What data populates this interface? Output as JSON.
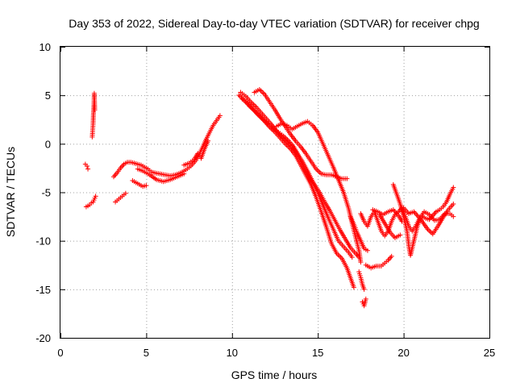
{
  "chart_data": {
    "type": "scatter",
    "title": "Day 353 of 2022, Sidereal Day-to-day VTEC variation (SDTVAR) for receiver chpg",
    "xlabel": "GPS time / hours",
    "ylabel": "SDTVAR / TECUs",
    "xlim": [
      0,
      25
    ],
    "ylim": [
      -20,
      10
    ],
    "xticks": [
      0,
      5,
      10,
      15,
      20,
      25
    ],
    "yticks": [
      -20,
      -15,
      -10,
      -5,
      0,
      5,
      10
    ],
    "xtick_labels": [
      "0",
      "5",
      "10",
      "15",
      "20",
      "25"
    ],
    "ytick_labels": [
      "-20",
      "-15",
      "-10",
      "-5",
      "0",
      "5",
      "10"
    ],
    "grid": true,
    "marker": "plus",
    "color": "#ff0000",
    "series": [
      {
        "name": "s1",
        "points": [
          [
            1.5,
            -6.5
          ],
          [
            1.6,
            -6.4
          ],
          [
            1.7,
            -6.3
          ],
          [
            1.8,
            -6.1
          ],
          [
            1.9,
            -6.0
          ],
          [
            2.0,
            -5.6
          ],
          [
            2.05,
            -5.4
          ]
        ]
      },
      {
        "name": "s2",
        "points": [
          [
            1.45,
            -2.1
          ],
          [
            1.55,
            -2.3
          ],
          [
            1.6,
            -2.6
          ]
        ]
      },
      {
        "name": "s3",
        "points": [
          [
            1.85,
            0.7
          ],
          [
            1.9,
            2.0
          ],
          [
            1.92,
            3.0
          ],
          [
            1.95,
            4.0
          ],
          [
            1.97,
            5.2
          ],
          [
            2.0,
            3.5
          ]
        ]
      },
      {
        "name": "s4",
        "points": [
          [
            3.1,
            -3.4
          ],
          [
            3.3,
            -3.0
          ],
          [
            3.5,
            -2.5
          ],
          [
            3.7,
            -2.1
          ],
          [
            3.9,
            -1.9
          ],
          [
            4.1,
            -1.9
          ],
          [
            4.3,
            -2.0
          ],
          [
            4.5,
            -2.1
          ],
          [
            4.7,
            -2.2
          ],
          [
            4.9,
            -2.4
          ],
          [
            5.1,
            -2.6
          ],
          [
            5.3,
            -2.9
          ],
          [
            5.5,
            -3.0
          ],
          [
            5.8,
            -3.1
          ],
          [
            6.1,
            -3.2
          ],
          [
            6.4,
            -3.3
          ],
          [
            6.7,
            -3.2
          ],
          [
            7.0,
            -3.0
          ],
          [
            7.3,
            -2.7
          ],
          [
            7.6,
            -2.3
          ],
          [
            7.9,
            -1.7
          ],
          [
            8.1,
            -1.0
          ],
          [
            8.3,
            -0.3
          ],
          [
            8.5,
            0.5
          ],
          [
            8.7,
            1.2
          ],
          [
            8.9,
            1.9
          ],
          [
            9.1,
            2.4
          ],
          [
            9.3,
            2.9
          ]
        ]
      },
      {
        "name": "s5",
        "points": [
          [
            3.2,
            -6.0
          ],
          [
            3.4,
            -5.7
          ],
          [
            3.6,
            -5.4
          ],
          [
            3.8,
            -5.1
          ]
        ]
      },
      {
        "name": "s6",
        "points": [
          [
            4.2,
            -3.8
          ],
          [
            4.4,
            -4.0
          ],
          [
            4.6,
            -4.2
          ],
          [
            4.8,
            -4.4
          ],
          [
            5.0,
            -4.3
          ]
        ]
      },
      {
        "name": "s7",
        "points": [
          [
            4.5,
            -2.6
          ],
          [
            4.8,
            -2.8
          ],
          [
            5.2,
            -3.2
          ],
          [
            5.6,
            -3.7
          ],
          [
            6.0,
            -3.9
          ],
          [
            6.4,
            -3.7
          ],
          [
            6.8,
            -3.4
          ],
          [
            7.2,
            -3.1
          ]
        ]
      },
      {
        "name": "s8",
        "points": [
          [
            7.2,
            -2.2
          ],
          [
            7.5,
            -2.0
          ],
          [
            7.8,
            -1.6
          ],
          [
            8.0,
            -1.0
          ],
          [
            8.2,
            -1.5
          ],
          [
            8.4,
            -0.5
          ],
          [
            8.6,
            0.3
          ]
        ]
      },
      {
        "name": "s9",
        "points": [
          [
            10.4,
            5.0
          ],
          [
            10.7,
            4.5
          ],
          [
            11.0,
            3.9
          ],
          [
            11.3,
            3.4
          ],
          [
            11.6,
            2.9
          ],
          [
            11.9,
            2.3
          ],
          [
            12.2,
            1.7
          ],
          [
            12.5,
            1.2
          ],
          [
            12.8,
            0.6
          ],
          [
            13.1,
            0.0
          ],
          [
            13.4,
            -0.5
          ],
          [
            13.7,
            -1.2
          ],
          [
            14.0,
            -2.2
          ],
          [
            14.3,
            -3.2
          ],
          [
            14.6,
            -4.2
          ],
          [
            14.9,
            -5.5
          ],
          [
            15.2,
            -7.0
          ],
          [
            15.5,
            -8.6
          ],
          [
            15.8,
            -10.3
          ],
          [
            16.1,
            -11.3
          ],
          [
            16.4,
            -11.8
          ],
          [
            16.7,
            -12.8
          ],
          [
            16.9,
            -13.8
          ],
          [
            17.1,
            -14.8
          ]
        ]
      },
      {
        "name": "s10",
        "points": [
          [
            10.5,
            5.3
          ],
          [
            10.8,
            4.9
          ],
          [
            11.1,
            4.3
          ],
          [
            11.4,
            3.8
          ],
          [
            11.7,
            3.2
          ],
          [
            12.0,
            2.6
          ],
          [
            12.3,
            2.0
          ],
          [
            12.6,
            1.3
          ],
          [
            12.9,
            0.7
          ],
          [
            13.2,
            0.2
          ],
          [
            13.5,
            -0.3
          ],
          [
            13.8,
            -1.0
          ],
          [
            14.1,
            -1.8
          ],
          [
            14.4,
            -2.8
          ],
          [
            14.7,
            -3.9
          ],
          [
            15.0,
            -5.0
          ],
          [
            15.3,
            -6.3
          ],
          [
            15.6,
            -7.6
          ],
          [
            15.9,
            -8.8
          ],
          [
            16.2,
            -10.0
          ],
          [
            16.5,
            -10.6
          ],
          [
            16.8,
            -11.2
          ],
          [
            17.0,
            -11.7
          ]
        ]
      },
      {
        "name": "s11",
        "points": [
          [
            10.6,
            4.6
          ],
          [
            10.9,
            4.2
          ],
          [
            11.2,
            3.6
          ],
          [
            11.5,
            3.0
          ],
          [
            11.8,
            2.5
          ],
          [
            12.1,
            2.0
          ],
          [
            12.4,
            1.6
          ],
          [
            12.7,
            1.2
          ],
          [
            13.0,
            0.8
          ],
          [
            13.3,
            0.3
          ],
          [
            13.6,
            -0.3
          ],
          [
            13.9,
            -1.3
          ],
          [
            14.2,
            -2.5
          ],
          [
            14.5,
            -3.5
          ],
          [
            14.8,
            -4.2
          ],
          [
            15.1,
            -5.0
          ],
          [
            15.4,
            -6.0
          ],
          [
            15.7,
            -6.9
          ],
          [
            16.0,
            -7.9
          ],
          [
            16.3,
            -8.9
          ],
          [
            16.6,
            -9.8
          ],
          [
            16.9,
            -10.7
          ],
          [
            17.2,
            -11.3
          ],
          [
            17.4,
            -11.7
          ]
        ]
      },
      {
        "name": "s12",
        "points": [
          [
            11.3,
            5.3
          ],
          [
            11.6,
            5.6
          ],
          [
            11.9,
            5.1
          ],
          [
            12.2,
            4.3
          ],
          [
            12.5,
            3.5
          ],
          [
            12.8,
            2.6
          ],
          [
            13.1,
            1.8
          ],
          [
            13.4,
            1.0
          ],
          [
            13.7,
            0.3
          ],
          [
            14.0,
            -0.3
          ],
          [
            14.3,
            -1.0
          ],
          [
            14.6,
            -1.8
          ],
          [
            14.9,
            -2.6
          ],
          [
            15.2,
            -3.1
          ],
          [
            15.5,
            -3.2
          ],
          [
            15.8,
            -3.2
          ],
          [
            16.1,
            -3.4
          ],
          [
            16.4,
            -3.6
          ],
          [
            16.7,
            -3.6
          ]
        ]
      },
      {
        "name": "s13",
        "points": [
          [
            12.6,
            1.8
          ],
          [
            12.9,
            2.1
          ],
          [
            13.2,
            1.9
          ],
          [
            13.5,
            1.5
          ],
          [
            13.8,
            1.8
          ],
          [
            14.1,
            2.1
          ],
          [
            14.4,
            2.3
          ],
          [
            14.7,
            1.9
          ],
          [
            15.0,
            1.2
          ],
          [
            15.3,
            0.0
          ],
          [
            15.6,
            -1.2
          ],
          [
            15.9,
            -2.4
          ],
          [
            16.2,
            -3.7
          ],
          [
            16.5,
            -5.0
          ],
          [
            16.8,
            -6.7
          ],
          [
            17.0,
            -8.2
          ],
          [
            17.2,
            -9.6
          ],
          [
            17.4,
            -11.0
          ],
          [
            17.5,
            -12.2
          ]
        ]
      },
      {
        "name": "s14",
        "points": [
          [
            16.9,
            -7.5
          ],
          [
            17.1,
            -8.3
          ],
          [
            17.3,
            -9.2
          ],
          [
            17.5,
            -10.0
          ],
          [
            17.7,
            -10.8
          ],
          [
            17.9,
            -11.0
          ]
        ]
      },
      {
        "name": "s15",
        "points": [
          [
            17.4,
            -13.2
          ],
          [
            17.5,
            -13.8
          ],
          [
            17.6,
            -14.5
          ],
          [
            17.7,
            -15.0
          ]
        ]
      },
      {
        "name": "s16",
        "points": [
          [
            17.6,
            -16.3
          ],
          [
            17.7,
            -16.7
          ],
          [
            17.8,
            -16.0
          ]
        ]
      },
      {
        "name": "s17",
        "points": [
          [
            17.8,
            -12.5
          ],
          [
            18.1,
            -12.8
          ],
          [
            18.4,
            -12.6
          ],
          [
            18.7,
            -12.6
          ],
          [
            18.9,
            -12.3
          ],
          [
            19.1,
            -12.0
          ],
          [
            19.3,
            -11.6
          ]
        ]
      },
      {
        "name": "s18",
        "points": [
          [
            17.5,
            -7.2
          ],
          [
            17.7,
            -8.0
          ],
          [
            17.9,
            -8.5
          ],
          [
            18.1,
            -7.5
          ],
          [
            18.3,
            -7.0
          ],
          [
            18.5,
            -8.0
          ],
          [
            18.7,
            -9.0
          ],
          [
            18.9,
            -9.5
          ],
          [
            19.1,
            -9.0
          ],
          [
            19.3,
            -8.0
          ],
          [
            19.5,
            -7.3
          ],
          [
            19.7,
            -7.0
          ],
          [
            19.9,
            -6.6
          ],
          [
            20.1,
            -7.5
          ],
          [
            20.3,
            -8.5
          ],
          [
            20.5,
            -9.0
          ],
          [
            20.7,
            -8.5
          ],
          [
            20.9,
            -7.8
          ],
          [
            21.1,
            -7.5
          ],
          [
            21.3,
            -7.7
          ],
          [
            21.5,
            -7.8
          ],
          [
            21.7,
            -7.4
          ],
          [
            21.9,
            -7.0
          ],
          [
            22.1,
            -6.8
          ],
          [
            22.3,
            -6.5
          ],
          [
            22.5,
            -6.0
          ],
          [
            22.7,
            -5.2
          ],
          [
            22.9,
            -4.5
          ]
        ]
      },
      {
        "name": "s19",
        "points": [
          [
            18.2,
            -6.8
          ],
          [
            18.5,
            -7.0
          ],
          [
            18.8,
            -7.3
          ],
          [
            19.1,
            -7.0
          ],
          [
            19.4,
            -6.8
          ],
          [
            19.7,
            -7.4
          ],
          [
            19.9,
            -8.0
          ]
        ]
      },
      {
        "name": "s20",
        "points": [
          [
            18.6,
            -7.3
          ],
          [
            18.9,
            -8.2
          ],
          [
            19.2,
            -9.1
          ],
          [
            19.5,
            -9.7
          ],
          [
            19.8,
            -9.4
          ]
        ]
      },
      {
        "name": "s21",
        "points": [
          [
            19.4,
            -4.2
          ],
          [
            19.8,
            -6.2
          ],
          [
            20.0,
            -7.5
          ],
          [
            20.2,
            -9.0
          ],
          [
            20.3,
            -10.5
          ],
          [
            20.4,
            -11.5
          ],
          [
            20.6,
            -10.0
          ],
          [
            20.8,
            -8.5
          ],
          [
            21.0,
            -7.5
          ],
          [
            21.2,
            -7.0
          ],
          [
            21.5,
            -7.3
          ],
          [
            21.8,
            -7.9
          ],
          [
            22.1,
            -7.8
          ],
          [
            22.4,
            -7.2
          ],
          [
            22.7,
            -7.2
          ],
          [
            22.9,
            -7.5
          ]
        ]
      },
      {
        "name": "s22",
        "points": [
          [
            20.0,
            -6.6
          ],
          [
            20.3,
            -7.2
          ],
          [
            20.6,
            -7.0
          ],
          [
            21.0,
            -7.8
          ],
          [
            21.4,
            -8.8
          ],
          [
            21.7,
            -9.3
          ],
          [
            22.0,
            -8.5
          ],
          [
            22.3,
            -7.6
          ],
          [
            22.6,
            -6.8
          ],
          [
            22.9,
            -6.2
          ]
        ]
      }
    ]
  }
}
